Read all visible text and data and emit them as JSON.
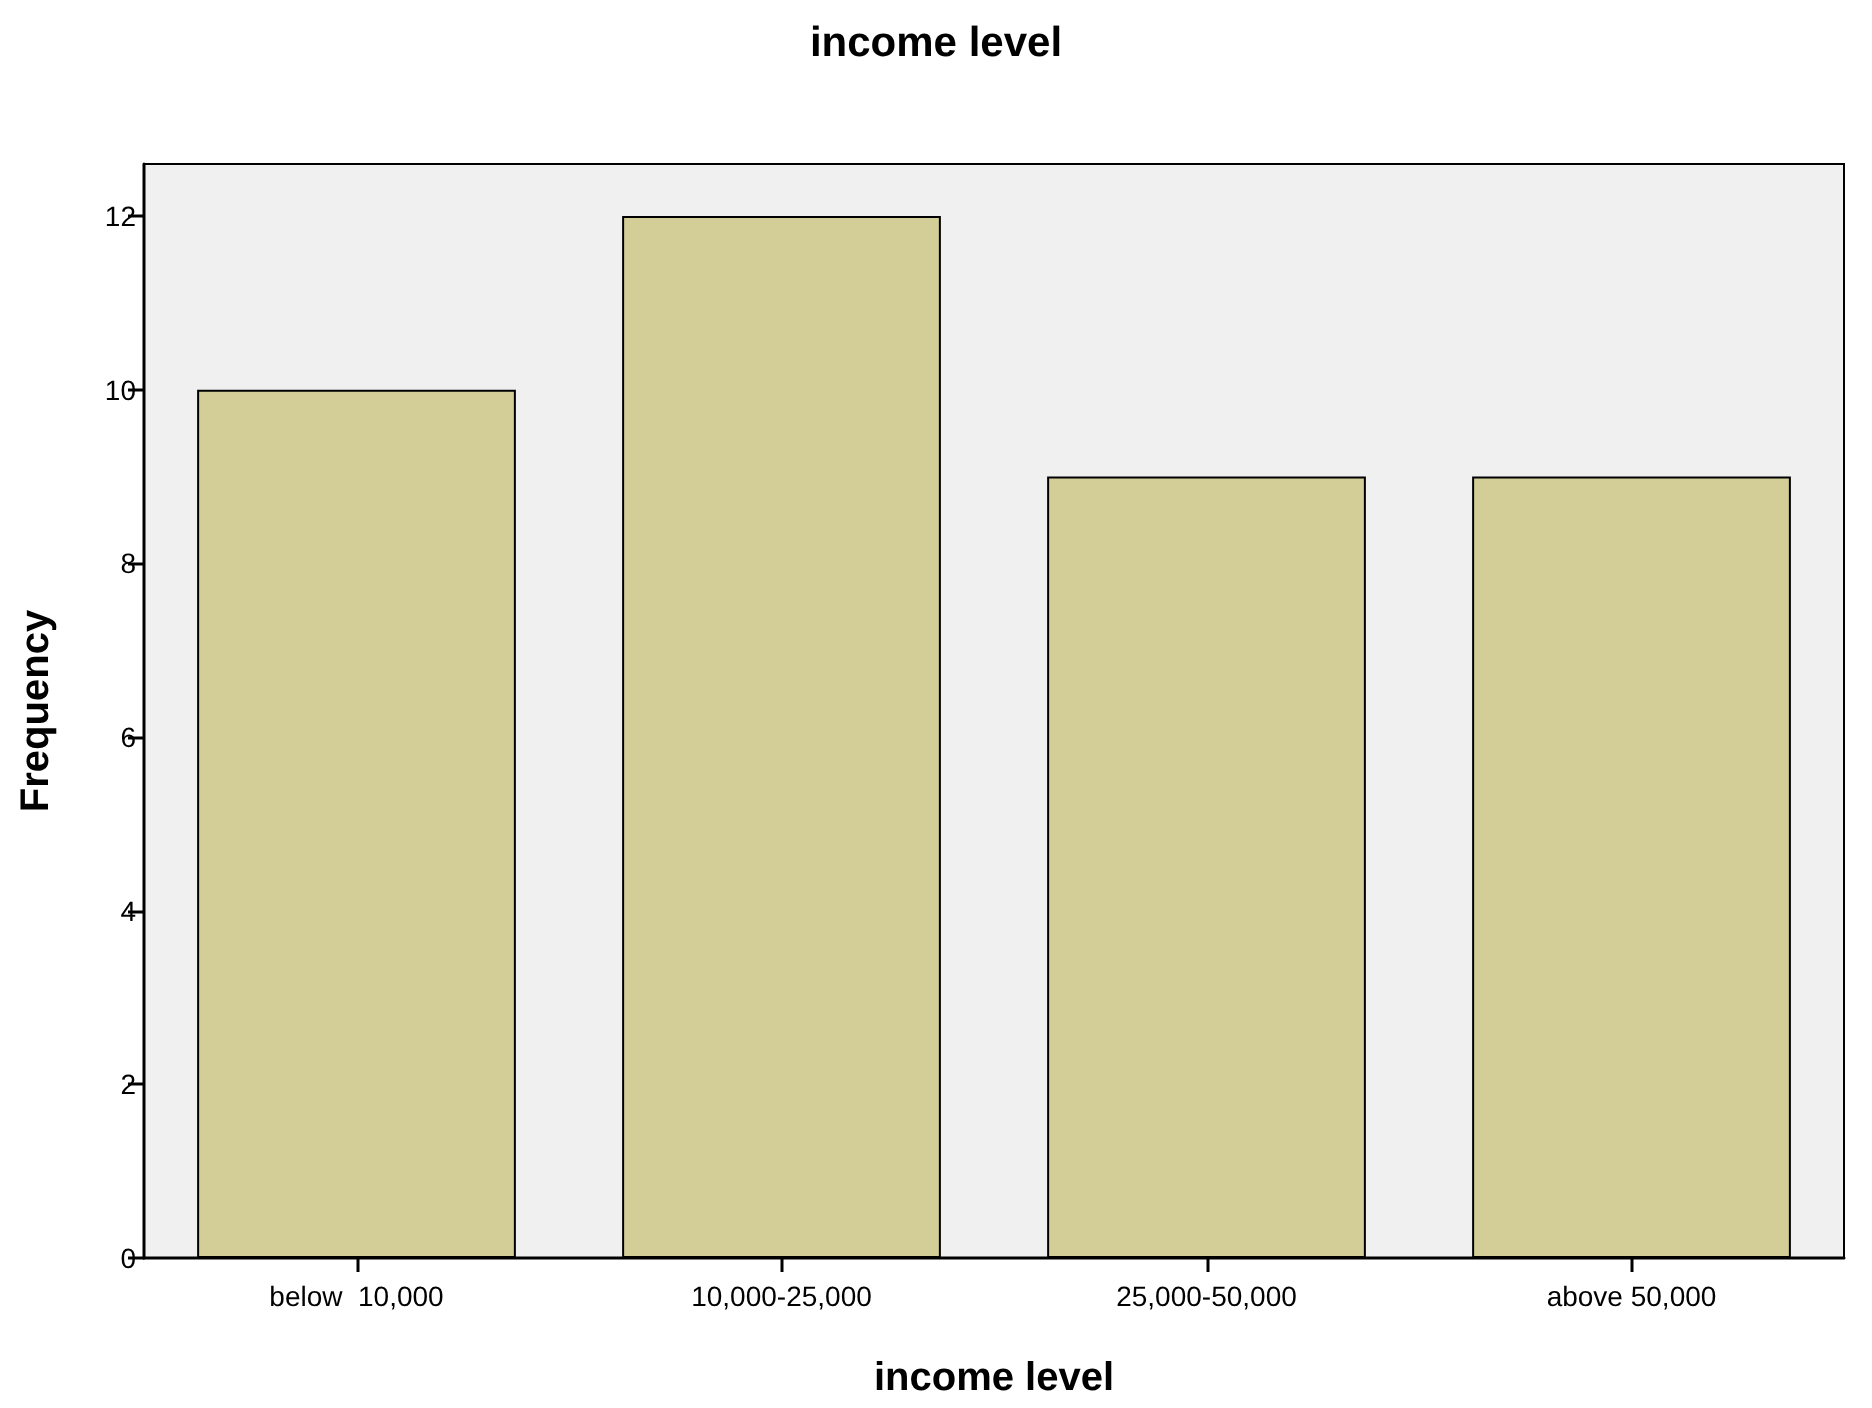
{
  "chart_data": {
    "type": "bar",
    "title": "income level",
    "xlabel": "income level",
    "ylabel": "Frequency",
    "categories": [
      "below  10,000",
      "10,000-25,000",
      "25,000-50,000",
      "above 50,000"
    ],
    "values": [
      10,
      12,
      9,
      9
    ],
    "color": "#d3ce97",
    "ylim": [
      0,
      12.6
    ],
    "yticks": [
      0,
      2,
      4,
      6,
      8,
      10,
      12
    ],
    "grid": false
  }
}
